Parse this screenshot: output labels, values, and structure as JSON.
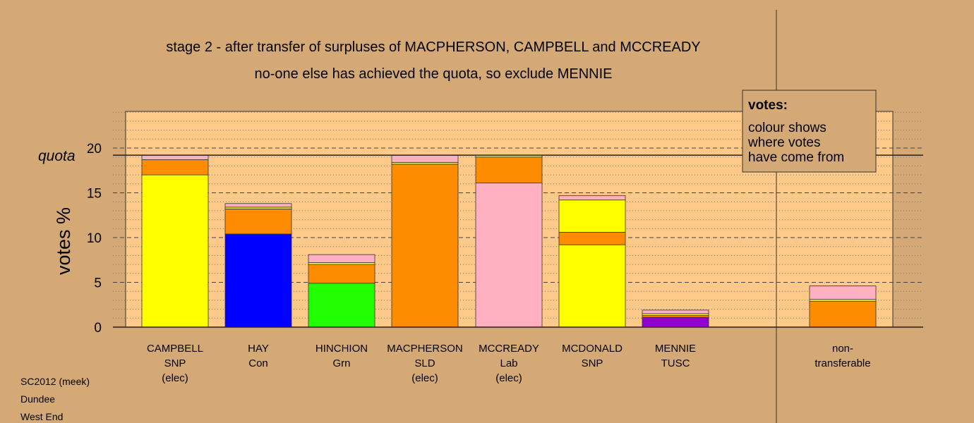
{
  "chart_data": {
    "type": "bar",
    "stacked": true,
    "title": "stage 2 - after transfer of surpluses of MACPHERSON, CAMPBELL and MCCREADY",
    "subtitle": "no-one else has achieved the quota, so exclude MENNIE",
    "ylabel": "votes %",
    "ylim": [
      0,
      24
    ],
    "yticks": [
      0,
      5,
      10,
      15,
      20
    ],
    "quota": 19.2,
    "quota_label": "quota",
    "grid": "dotted every 1%, dashed every 5%",
    "legend": {
      "title": "votes:",
      "lines": [
        "colour shows",
        "where votes",
        "have come from"
      ],
      "placement": "top-right"
    },
    "colors": {
      "SNP": "#ffff00",
      "Con": "#0000ff",
      "Grn": "#22ff00",
      "SLD": "#ff8c00",
      "Lab": "#ffb0c0",
      "TUSC": "#9400d3",
      "panel": "#ffc98a"
    },
    "candidates": [
      {
        "name": "CAMPBELL",
        "party": "SNP",
        "status": "(elec)",
        "segments": [
          {
            "party": "SNP",
            "value": 17.0
          },
          {
            "party": "SLD",
            "value": 1.7
          },
          {
            "party": "Lab",
            "value": 0.5
          }
        ]
      },
      {
        "name": "HAY",
        "party": "Con",
        "status": "",
        "segments": [
          {
            "party": "Con",
            "value": 10.4
          },
          {
            "party": "SLD",
            "value": 2.8
          },
          {
            "party": "SNP",
            "value": 0.2
          },
          {
            "party": "Lab",
            "value": 0.4
          }
        ]
      },
      {
        "name": "HINCHION",
        "party": "Grn",
        "status": "",
        "segments": [
          {
            "party": "Grn",
            "value": 4.9
          },
          {
            "party": "SLD",
            "value": 2.1
          },
          {
            "party": "SNP",
            "value": 0.2
          },
          {
            "party": "Lab",
            "value": 0.9
          }
        ]
      },
      {
        "name": "MACPHERSON",
        "party": "SLD",
        "status": "(elec)",
        "segments": [
          {
            "party": "SLD",
            "value": 18.2
          },
          {
            "party": "SNP",
            "value": 0.2
          },
          {
            "party": "Lab",
            "value": 0.8
          }
        ]
      },
      {
        "name": "MCCREADY",
        "party": "Lab",
        "status": "(elec)",
        "segments": [
          {
            "party": "Lab",
            "value": 16.1
          },
          {
            "party": "SLD",
            "value": 2.9
          },
          {
            "party": "SNP",
            "value": 0.2
          }
        ]
      },
      {
        "name": "MCDONALD",
        "party": "SNP",
        "status": "",
        "segments": [
          {
            "party": "SNP",
            "value": 9.2
          },
          {
            "party": "SLD",
            "value": 1.4
          },
          {
            "party": "SNP",
            "value": 3.6
          },
          {
            "party": "Lab",
            "value": 0.5
          }
        ]
      },
      {
        "name": "MENNIE",
        "party": "TUSC",
        "status": "",
        "segments": [
          {
            "party": "TUSC",
            "value": 1.1
          },
          {
            "party": "SLD",
            "value": 0.2
          },
          {
            "party": "SNP",
            "value": 0.2
          },
          {
            "party": "Lab",
            "value": 0.4
          }
        ]
      }
    ],
    "nontransferable": {
      "label_line1": "non-",
      "label_line2": "transferable",
      "segments": [
        {
          "party": "SLD",
          "value": 2.9
        },
        {
          "party": "SNP",
          "value": 0.2
        },
        {
          "party": "Lab",
          "value": 1.5
        }
      ]
    }
  },
  "footer": {
    "line1": "SC2012 (meek)",
    "line2": "Dundee",
    "line3": "West End"
  }
}
